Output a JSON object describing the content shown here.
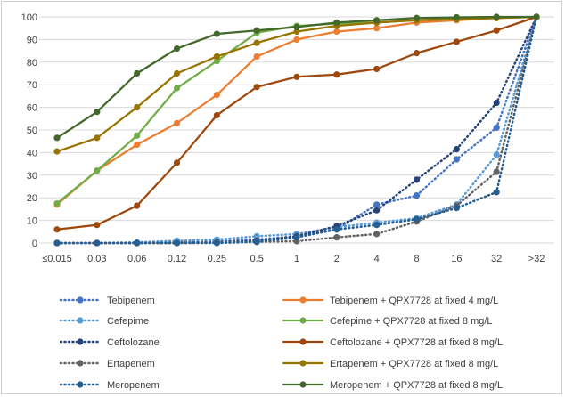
{
  "chart_data": {
    "type": "line",
    "title": "",
    "xlabel": "",
    "ylabel": "",
    "categories": [
      "≤0.015",
      "0.03",
      "0.06",
      "0.12",
      "0.25",
      "0.5",
      "1",
      "2",
      "4",
      "8",
      "16",
      "32",
      ">32"
    ],
    "ylim": [
      0,
      100
    ],
    "yticks": [
      0,
      10,
      20,
      30,
      40,
      50,
      60,
      70,
      80,
      90,
      100
    ],
    "grid": "horizontal",
    "legend_position": "bottom",
    "series": [
      {
        "name": "Tebipenem",
        "style": "dotted",
        "color": "#4472C4",
        "values": [
          0,
          0,
          0,
          0.5,
          0.8,
          1.5,
          3,
          6,
          17,
          21,
          37,
          51,
          100
        ]
      },
      {
        "name": "Tebipenem + QPX7728 at fixed 4 mg/L",
        "style": "solid",
        "color": "#ED7D31",
        "values": [
          17,
          32,
          43.5,
          53,
          65.5,
          82.5,
          90,
          93.5,
          95,
          97.5,
          98.5,
          99.5,
          100
        ]
      },
      {
        "name": "Cefepime",
        "style": "dotted",
        "color": "#5B9BD5",
        "values": [
          0,
          0,
          0.3,
          1,
          1.5,
          3,
          4,
          7,
          9,
          11,
          17,
          39,
          100
        ]
      },
      {
        "name": "Cefepime + QPX7728 at fixed 8 mg/L",
        "style": "solid",
        "color": "#70AD47",
        "values": [
          17.5,
          32,
          47.5,
          68.5,
          80.5,
          93,
          96,
          97,
          97.5,
          98.5,
          99,
          99.5,
          100
        ]
      },
      {
        "name": "Ceftolozane",
        "style": "dotted",
        "color": "#264478",
        "values": [
          0,
          0,
          0,
          0,
          0.3,
          1,
          3,
          7.5,
          14.5,
          28,
          41.5,
          62,
          100
        ]
      },
      {
        "name": "Ceftolozane + QPX7728 at fixed 8 mg/L",
        "style": "solid",
        "color": "#9E480E",
        "values": [
          6,
          8,
          16.5,
          35.5,
          56.5,
          69,
          73.5,
          74.5,
          77,
          84,
          89,
          94,
          100
        ]
      },
      {
        "name": "Ertapenem",
        "style": "dotted",
        "color": "#636363",
        "values": [
          0,
          0,
          0,
          0,
          0.3,
          0.5,
          0.8,
          2.5,
          4,
          9.5,
          16.5,
          31.5,
          100
        ]
      },
      {
        "name": "Ertapenem + QPX7728 at fixed 8 mg/L",
        "style": "solid",
        "color": "#997300",
        "values": [
          40.5,
          46.5,
          60,
          75,
          82.5,
          88.5,
          93.5,
          96,
          97.5,
          98.5,
          99,
          99.5,
          100
        ]
      },
      {
        "name": "Meropenem",
        "style": "dotted",
        "color": "#255E91",
        "values": [
          0,
          0,
          0,
          0,
          0,
          0.5,
          2.5,
          6,
          8,
          10.5,
          15.5,
          22.5,
          100
        ]
      },
      {
        "name": "Meropenem + QPX7728 at fixed 8 mg/L",
        "style": "solid",
        "color": "#43682B",
        "values": [
          46.5,
          58,
          75,
          86,
          92.5,
          94,
          95.5,
          97.5,
          98.5,
          99.5,
          99.8,
          100,
          100
        ]
      }
    ]
  }
}
